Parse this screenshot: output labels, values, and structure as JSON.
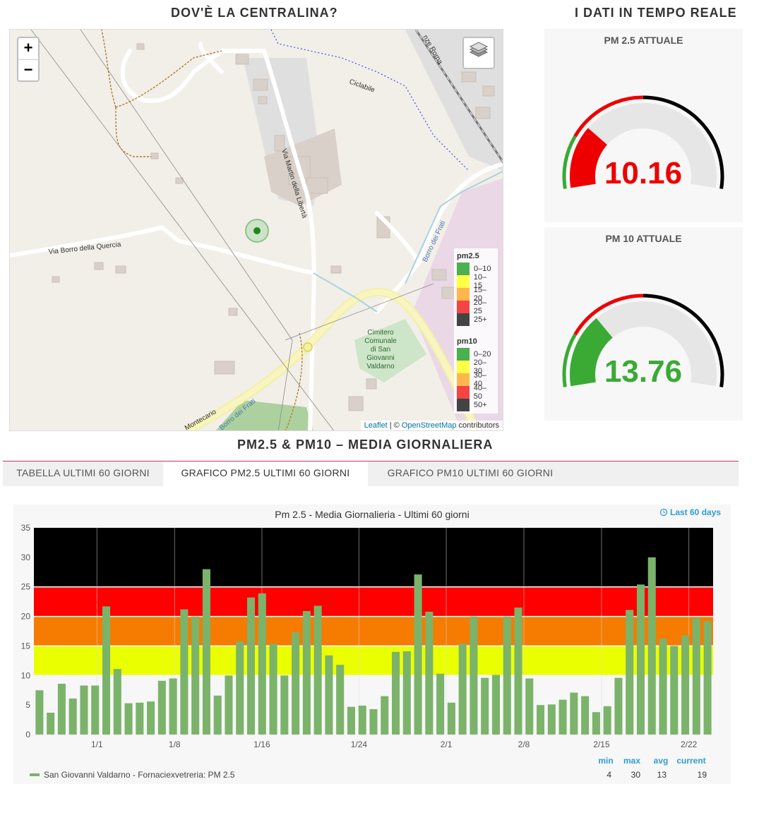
{
  "map_section": {
    "title": "DOV'È LA CENTRALINA?"
  },
  "realtime_section": {
    "title": "I DATI IN TEMPO REALE"
  },
  "map": {
    "zoom_in": "+",
    "zoom_out": "−",
    "labels": [
      "Via Borro della Quercia",
      "Via Martin della Libertà",
      "Ciclabile",
      "Borro dei Frati",
      "Borro dei Frati",
      "Montecario",
      "nze Roma"
    ],
    "cemetery_label": [
      "Cimitero",
      "Comunale",
      "di San",
      "Giovanni",
      "Valdarno"
    ],
    "attribution": {
      "leaflet": "Leaflet",
      "sep": " | © ",
      "osm": "OpenStreetMap",
      "contrib": " contributors"
    },
    "legend": {
      "pm25": {
        "title": "pm2.5",
        "items": [
          {
            "label": "0–10",
            "color": "#4caf50"
          },
          {
            "label": "10–15",
            "color": "#ffff44"
          },
          {
            "label": "15–20",
            "color": "#ffb74d"
          },
          {
            "label": "20–25",
            "color": "#f44444"
          },
          {
            "label": "25+",
            "color": "#444444"
          }
        ]
      },
      "pm10": {
        "title": "pm10",
        "items": [
          {
            "label": "0–20",
            "color": "#4caf50"
          },
          {
            "label": "20–30",
            "color": "#ffff44"
          },
          {
            "label": "30–40",
            "color": "#ffb74d"
          },
          {
            "label": "40–50",
            "color": "#f44444"
          },
          {
            "label": "50+",
            "color": "#444444"
          }
        ]
      }
    }
  },
  "gauges": {
    "pm25": {
      "title": "PM 2.5 ATTUALE",
      "value": "10.16",
      "level": 0.254,
      "color": "#ee0000"
    },
    "pm10": {
      "title": "PM 10 ATTUALE",
      "value": "13.76",
      "level": 0.3,
      "color": "#3aaa35"
    }
  },
  "daily_section": {
    "title": "PM2.5 & PM10 – MEDIA GIORNALIERA"
  },
  "tabs": [
    {
      "label": "TABELLA ULTIMI 60 GIORNI",
      "active": false
    },
    {
      "label": "GRAFICO PM2.5 ULTIMI 60 GIORNI",
      "active": true
    },
    {
      "label": "GRAFICO PM10 ULTIMI 60 GIORNI",
      "active": false
    }
  ],
  "chart_data": {
    "type": "bar",
    "title": "Pm 2.5 - Media Giornalieria - Ultimi 60 giorni",
    "range_button": "Last 60 days",
    "series": [
      {
        "name": "San Giovanni Valdarno - Fornaciexvetreria: PM 2.5",
        "color": "#7bb36a",
        "values": [
          7.5,
          3.7,
          8.6,
          6.1,
          8.3,
          8.3,
          21.7,
          11.1,
          5.3,
          5.4,
          5.6,
          9.1,
          9.5,
          21.2,
          20.0,
          28.0,
          6.6,
          10.0,
          15.8,
          23.2,
          23.9,
          15.4,
          10.0,
          17.3,
          20.9,
          21.8,
          13.4,
          11.8,
          4.7,
          4.9,
          4.3,
          6.5,
          14.0,
          14.1,
          27.1,
          20.8,
          10.3,
          5.4,
          15.4,
          20.0,
          9.6,
          10.1,
          20.0,
          21.5,
          9.5,
          5.0,
          5.1,
          5.9,
          7.1,
          6.5,
          3.8,
          4.8,
          9.6,
          21.1,
          25.4,
          30.0,
          16.2,
          15.0,
          16.8,
          19.7,
          19.2
        ]
      }
    ],
    "x_ticks": [
      "1/1",
      "1/8",
      "1/16",
      "1/24",
      "2/1",
      "2/8",
      "2/15",
      "2/22"
    ],
    "y_ticks": [
      "0",
      "5",
      "10",
      "15",
      "20",
      "25",
      "30",
      "35"
    ],
    "ylim": [
      0,
      35
    ],
    "bands": [
      {
        "from": 0,
        "to": 10,
        "color": "#f7f7f7"
      },
      {
        "from": 10,
        "to": 15,
        "color": "#eaff00"
      },
      {
        "from": 15,
        "to": 20,
        "color": "#f57c00"
      },
      {
        "from": 20,
        "to": 25,
        "color": "#ff0000"
      },
      {
        "from": 25,
        "to": 35,
        "color": "#000000"
      }
    ],
    "stats": {
      "headers": [
        "min",
        "max",
        "avg",
        "current"
      ],
      "values": [
        "4",
        "30",
        "13",
        "19"
      ]
    },
    "grid": true,
    "legend_position": "bottom-left"
  }
}
